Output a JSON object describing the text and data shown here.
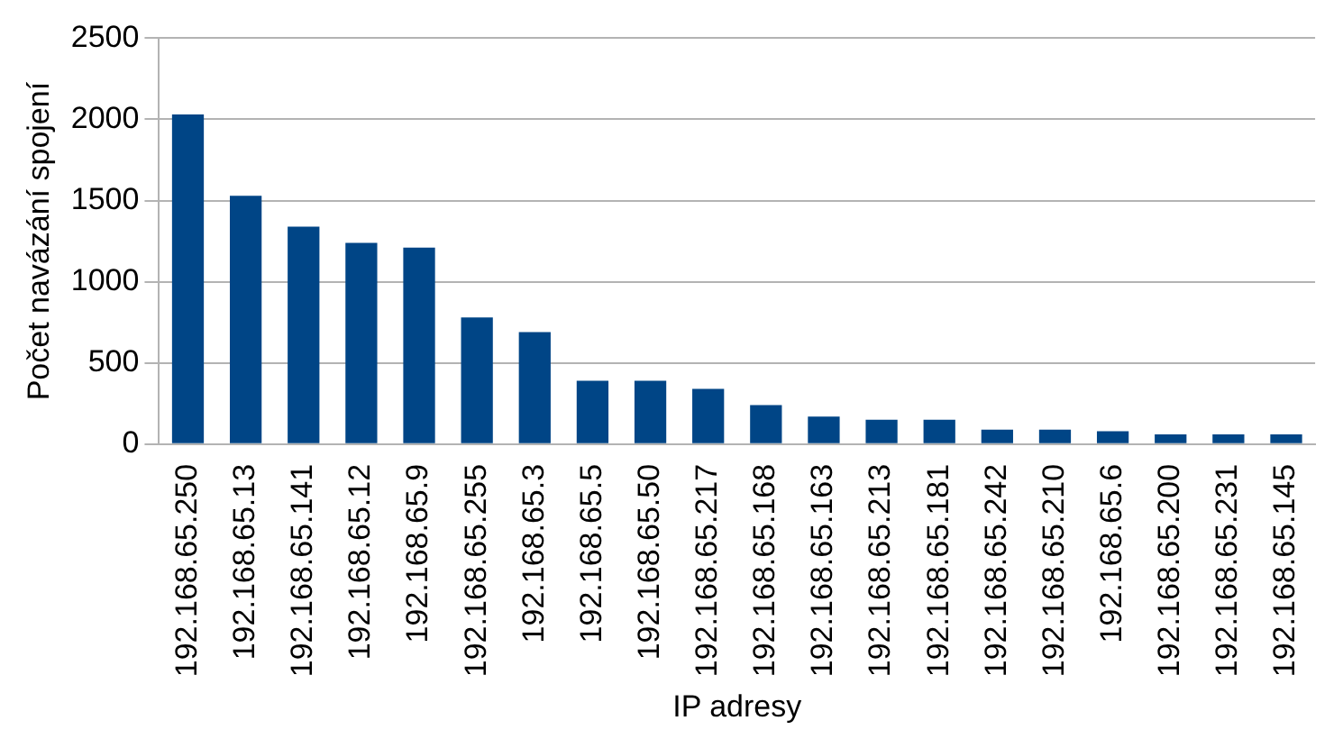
{
  "chart_data": {
    "type": "bar",
    "xlabel": "IP adresy",
    "ylabel": "Počet navázání spojení",
    "categories": [
      "192.168.65.250",
      "192.168.65.13",
      "192.168.65.141",
      "192.168.65.12",
      "192.168.65.9",
      "192.168.65.255",
      "192.168.65.3",
      "192.168.65.5",
      "192.168.65.50",
      "192.168.65.217",
      "192.168.65.168",
      "192.168.65.163",
      "192.168.65.213",
      "192.168.65.181",
      "192.168.65.242",
      "192.168.65.210",
      "192.168.65.6",
      "192.168.65.200",
      "192.168.65.231",
      "192.168.65.145"
    ],
    "values": [
      2030,
      1530,
      1340,
      1240,
      1210,
      780,
      690,
      390,
      390,
      340,
      240,
      170,
      150,
      150,
      90,
      90,
      80,
      60,
      60,
      60
    ],
    "color": "#004586",
    "ylim": [
      0,
      2500
    ],
    "yticks": [
      0,
      500,
      1000,
      1500,
      2000,
      2500
    ],
    "grid": "y",
    "legend": false
  }
}
